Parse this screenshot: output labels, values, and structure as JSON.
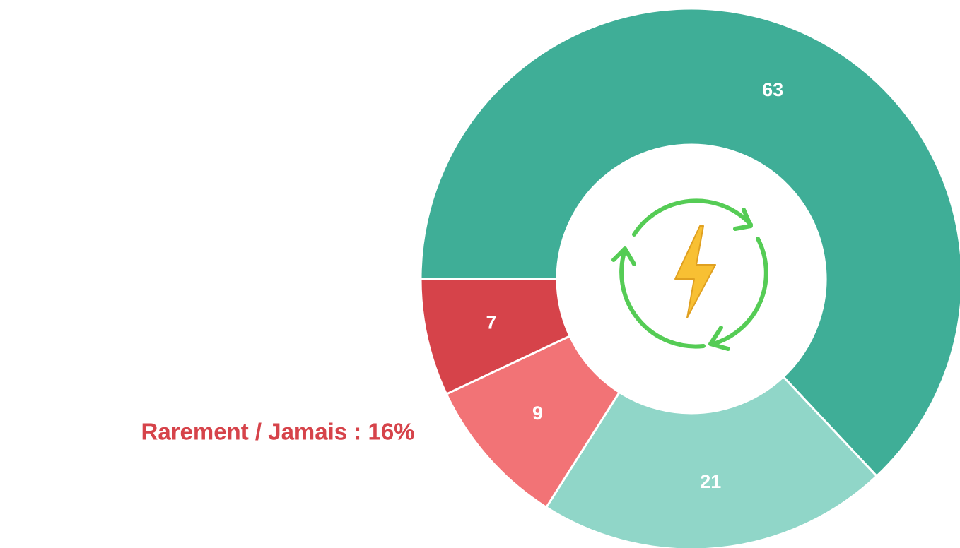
{
  "chart_data": {
    "type": "donut",
    "annotation": "Rarement / Jamais : 16%",
    "values": [
      63,
      21,
      9,
      7
    ],
    "colors": [
      "#3fae97",
      "#90d6c8",
      "#f27376",
      "#d6434a"
    ],
    "start_angle": 270
  }
}
